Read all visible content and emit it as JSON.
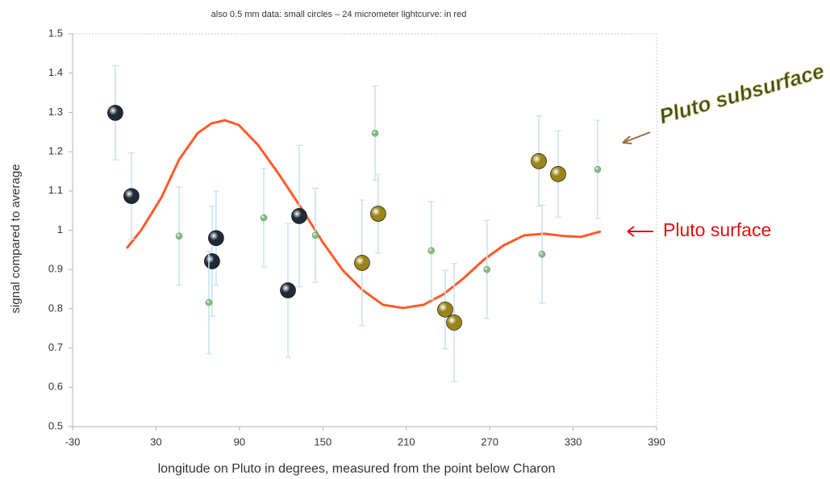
{
  "chart_data": {
    "type": "scatter",
    "title": "also 0.5 mm data: small circles  –  24 micrometer lightcurve: in red",
    "x_label": "longitude on Pluto in degrees, measured from the point below Charon",
    "y_label": "signal compared to average",
    "xlim": [
      -30,
      390
    ],
    "xticks": [
      -30,
      30,
      90,
      150,
      210,
      270,
      330,
      390
    ],
    "ylim": [
      0.5,
      1.5
    ],
    "yticks": [
      0.5,
      0.6,
      0.7,
      0.8,
      0.9,
      1,
      1.1,
      1.2,
      1.3,
      1.4,
      1.5
    ],
    "grid": false,
    "error_color": "#c4e2f2",
    "series": [
      {
        "type": "scatter",
        "marker": "large",
        "color": "#1e2a38",
        "x": [
          0.7,
          12.3,
          73.2,
          70.3,
          124.9,
          133
        ],
        "values": [
          1.299,
          1.087,
          0.98,
          0.921,
          0.847,
          1.036
        ],
        "errors": [
          0.12,
          0.11,
          0.12,
          0.14,
          0.17,
          0.18
        ]
      },
      {
        "type": "scatter",
        "marker": "large",
        "color": "#9a8418",
        "x": [
          178.2,
          189.8,
          238,
          244.4,
          305.3,
          319.2
        ],
        "values": [
          0.917,
          1.042,
          0.798,
          0.765,
          1.176,
          1.143
        ],
        "errors": [
          0.16,
          0.1,
          0.1,
          0.15,
          0.115,
          0.11
        ]
      },
      {
        "type": "scatter",
        "marker": "small",
        "color": "#7fbf7f",
        "x": [
          46.6,
          68,
          107.5,
          144.6,
          187.5,
          228,
          268,
          307.6,
          347.6
        ],
        "values": [
          0.985,
          0.816,
          1.032,
          0.987,
          1.247,
          0.948,
          0.9,
          0.939,
          1.155
        ],
        "errors": [
          0.125,
          0.13,
          0.125,
          0.12,
          0.12,
          0.125,
          0.125,
          0.125,
          0.125
        ]
      },
      {
        "type": "line",
        "color": "#ff5a2a",
        "x": [
          8.9,
          19.3,
          33.8,
          46.6,
          59.9,
          69.8,
          79.6,
          89.5,
          103.4,
          117.9,
          135.3,
          149.8,
          164.3,
          178.8,
          193.3,
          207.8,
          222.3,
          236.8,
          251.3,
          265.8,
          280.3,
          294.8,
          309.3,
          323.8,
          335.4,
          349.9
        ],
        "values": [
          0.954,
          1.0,
          1.083,
          1.18,
          1.247,
          1.272,
          1.28,
          1.268,
          1.217,
          1.145,
          1.052,
          0.97,
          0.898,
          0.847,
          0.81,
          0.802,
          0.81,
          0.837,
          0.878,
          0.925,
          0.962,
          0.987,
          0.991,
          0.985,
          0.983,
          0.997
        ]
      }
    ],
    "annotations": [
      {
        "text": "Pluto subsurface",
        "color": "#4a4a12"
      },
      {
        "text": "Pluto surface",
        "color": "#e01010"
      }
    ]
  }
}
